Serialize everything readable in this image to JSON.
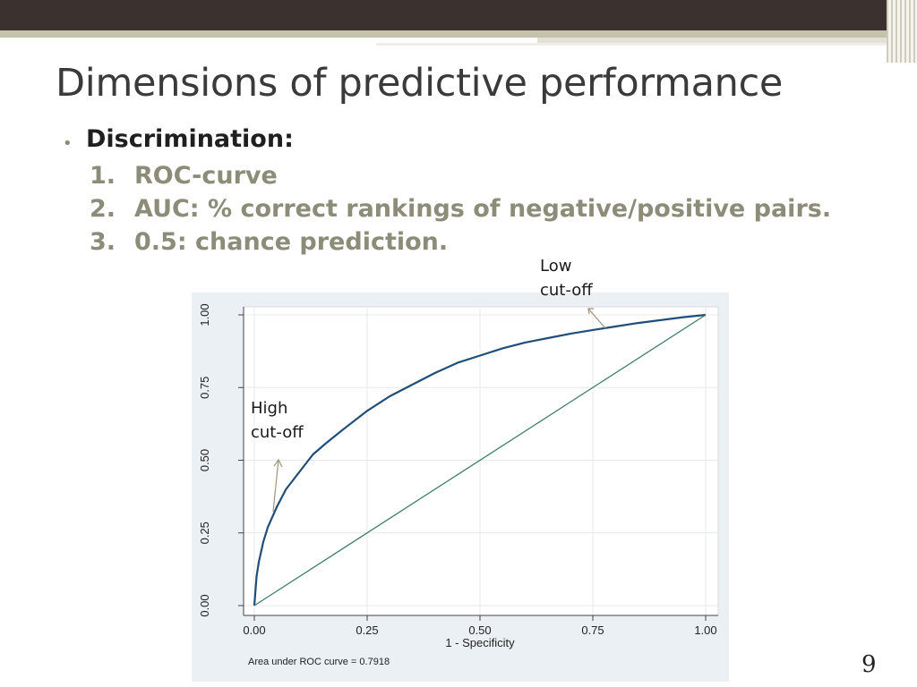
{
  "slide": {
    "title": "Dimensions of predictive performance",
    "bullet": "Discrimination:",
    "items": [
      {
        "num": "1.",
        "text": "ROC-curve"
      },
      {
        "num": "2.",
        "text": "AUC: % correct rankings of negative/positive pairs."
      },
      {
        "num": "3.",
        "text": "0.5: chance prediction."
      }
    ],
    "page_number": "9"
  },
  "annotations": {
    "low": [
      "Low",
      "cut-off"
    ],
    "high": [
      "High",
      "cut-off"
    ]
  },
  "colors": {
    "plot_background": "#eaf0f3",
    "roc_curve": "#1f4e79",
    "reference_line": "#3f7f6a",
    "annotation_arrow": "#a09478"
  },
  "chart_data": {
    "type": "line",
    "xlabel": "1 - Specificity",
    "ylabel": "",
    "note": "Area under ROC curve = 0.7918",
    "xlim": [
      0,
      1
    ],
    "ylim": [
      0,
      1
    ],
    "xticks": [
      "0.00",
      "0.25",
      "0.50",
      "0.75",
      "1.00"
    ],
    "yticks": [
      "0.00",
      "0.25",
      "0.50",
      "0.75",
      "1.00"
    ],
    "grid": true,
    "series": [
      {
        "x": [
          0,
          0.005,
          0.01,
          0.02,
          0.03,
          0.05,
          0.07,
          0.1,
          0.13,
          0.16,
          0.2,
          0.25,
          0.3,
          0.35,
          0.4,
          0.45,
          0.5,
          0.55,
          0.6,
          0.65,
          0.7,
          0.75,
          0.8,
          0.85,
          0.9,
          0.95,
          1.0
        ],
        "y": [
          0,
          0.1,
          0.15,
          0.22,
          0.27,
          0.34,
          0.4,
          0.46,
          0.52,
          0.56,
          0.61,
          0.67,
          0.72,
          0.76,
          0.8,
          0.835,
          0.86,
          0.885,
          0.905,
          0.92,
          0.935,
          0.948,
          0.96,
          0.972,
          0.982,
          0.992,
          1.0
        ]
      },
      {
        "x": [
          0,
          1
        ],
        "y": [
          0,
          1
        ]
      }
    ]
  }
}
